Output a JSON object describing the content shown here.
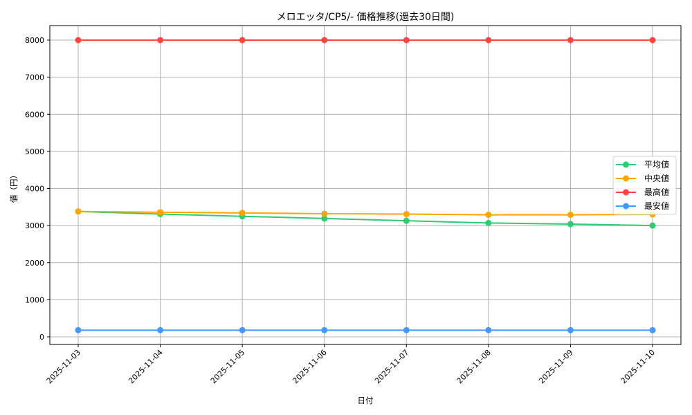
{
  "chart_data": {
    "type": "line",
    "title": "メロエッタ/CP5/- 価格推移(過去30日間)",
    "xlabel": "日付",
    "ylabel": "値（円）",
    "categories": [
      "2025-11-03",
      "2025-11-04",
      "2025-11-05",
      "2025-11-06",
      "2025-11-07",
      "2025-11-08",
      "2025-11-09",
      "2025-11-10"
    ],
    "ylim": [
      -220,
      8400
    ],
    "yticks": [
      0,
      1000,
      2000,
      3000,
      4000,
      5000,
      6000,
      7000,
      8000
    ],
    "grid": true,
    "legend_position": "center right",
    "series": [
      {
        "name": "平均値",
        "color": "#2ecc71",
        "values": [
          3380,
          3310,
          3250,
          3190,
          3130,
          3070,
          3040,
          3000
        ]
      },
      {
        "name": "中央値",
        "color": "#ffa500",
        "values": [
          3380,
          3360,
          3340,
          3320,
          3310,
          3290,
          3290,
          3300
        ]
      },
      {
        "name": "最高値",
        "color": "#ff4444",
        "values": [
          8000,
          8000,
          8000,
          8000,
          8000,
          8000,
          8000,
          8000
        ]
      },
      {
        "name": "最安値",
        "color": "#4499ff",
        "values": [
          180,
          180,
          180,
          180,
          180,
          180,
          180,
          180
        ]
      }
    ]
  }
}
